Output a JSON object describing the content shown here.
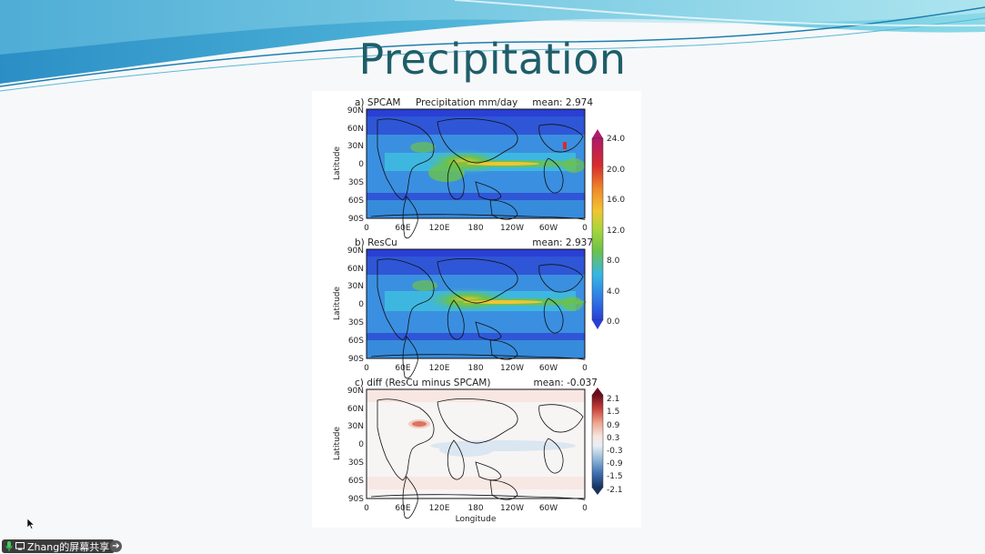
{
  "slide": {
    "title": "Precipitation"
  },
  "panels": [
    {
      "label": "a) SPCAM",
      "subtitle": "Precipitation mm/day",
      "mean": "mean: 2.974"
    },
    {
      "label": "b) ResCu",
      "subtitle": "",
      "mean": "mean: 2.937"
    },
    {
      "label": "c) diff (ResCu minus SPCAM)",
      "subtitle": "",
      "mean": "mean: -0.037"
    }
  ],
  "axes": {
    "ylabel": "Latitude",
    "xlabel": "Longitude",
    "lat_ticks": [
      "90N",
      "60N",
      "30N",
      "0",
      "30S",
      "60S",
      "90S"
    ],
    "lon_ticks": [
      "0",
      "60E",
      "120E",
      "180",
      "120W",
      "60W",
      "0"
    ]
  },
  "colorbar_precip": {
    "ticks": [
      "24.0",
      "20.0",
      "16.0",
      "12.0",
      "8.0",
      "4.0",
      "0.0"
    ]
  },
  "colorbar_diff": {
    "ticks": [
      "2.1",
      "1.5",
      "0.9",
      "0.3",
      "-0.3",
      "-0.9",
      "-1.5",
      "-2.1"
    ]
  },
  "taskbar": {
    "share_label": "Zhang的屏幕共享"
  },
  "colors": {
    "title": "#1e5e69",
    "ocean_blue": "#2f56d6",
    "mid_blue": "#3b8fe0",
    "cyan": "#40c0e0",
    "green": "#6cc24a",
    "yellow": "#f2c531",
    "red": "#d62c2c"
  }
}
